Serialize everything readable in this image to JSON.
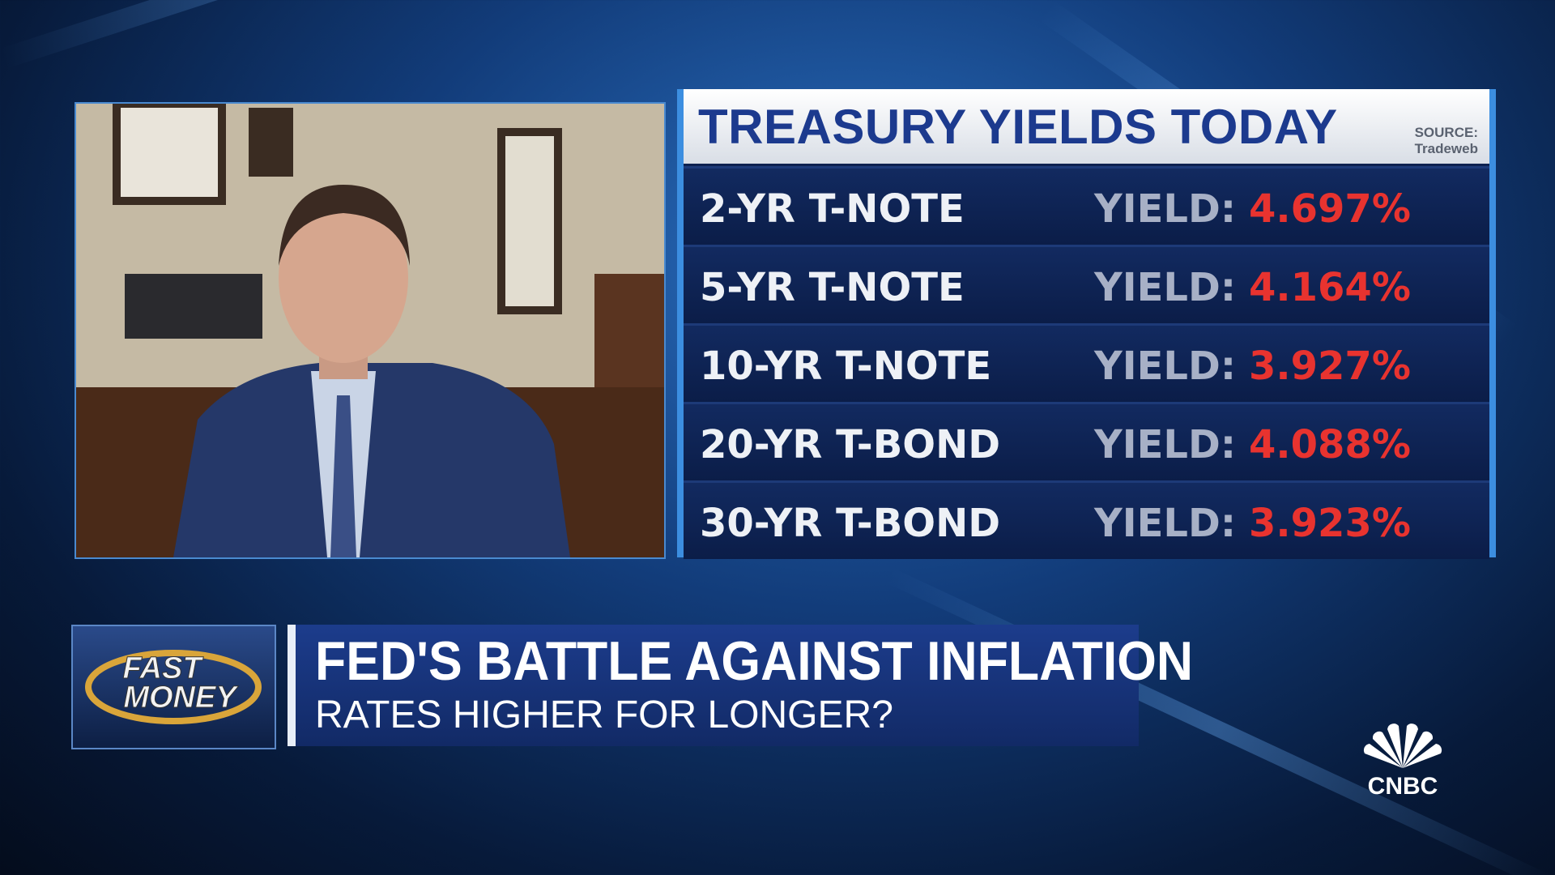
{
  "panel": {
    "title": "TREASURY YIELDS TODAY",
    "source_label": "SOURCE:",
    "source": "Tradeweb",
    "rows": [
      {
        "name": "2-YR T-NOTE",
        "label": "YIELD:",
        "value": "4.697%"
      },
      {
        "name": "5-YR T-NOTE",
        "label": "YIELD:",
        "value": "4.164%"
      },
      {
        "name": "10-YR T-NOTE",
        "label": "YIELD:",
        "value": "3.927%"
      },
      {
        "name": "20-YR T-BOND",
        "label": "YIELD:",
        "value": "4.088%"
      },
      {
        "name": "30-YR T-BOND",
        "label": "YIELD:",
        "value": "3.923%"
      }
    ]
  },
  "lower_third": {
    "logo": [
      "FAST",
      "MONEY"
    ],
    "headline": "FED'S BATTLE AGAINST INFLATION",
    "subheadline": "RATES HIGHER FOR LONGER?"
  },
  "network": "CNBC"
}
